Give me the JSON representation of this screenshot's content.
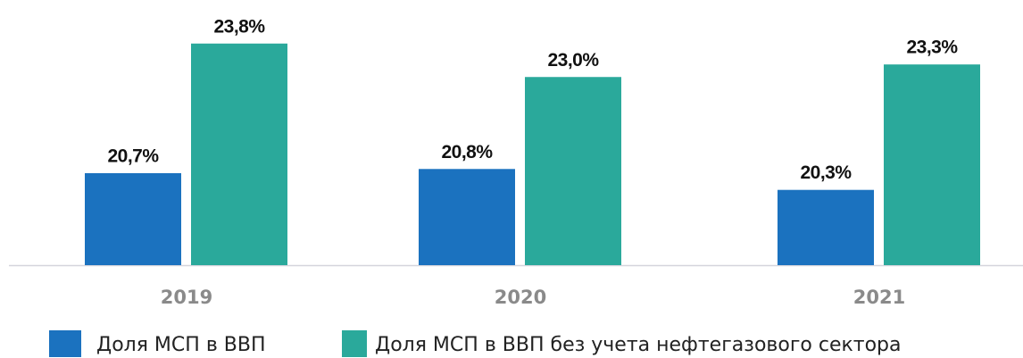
{
  "chart_data": {
    "type": "bar",
    "categories": [
      "2019",
      "2020",
      "2021"
    ],
    "series": [
      {
        "name": "Доля МСП в ВВП",
        "color": "#1b72bf",
        "values": [
          20.7,
          20.8,
          20.3
        ],
        "value_labels": [
          "20,7%",
          "20,8%",
          "20,3%"
        ]
      },
      {
        "name": "Доля МСП в ВВП без учета нефтегазового сектора",
        "color": "#2aa99b",
        "values": [
          23.8,
          23.0,
          23.3
        ],
        "value_labels": [
          "23,8%",
          "23,0%",
          "23,3%"
        ]
      }
    ],
    "ylim": [
      18.5,
      24.5
    ]
  }
}
